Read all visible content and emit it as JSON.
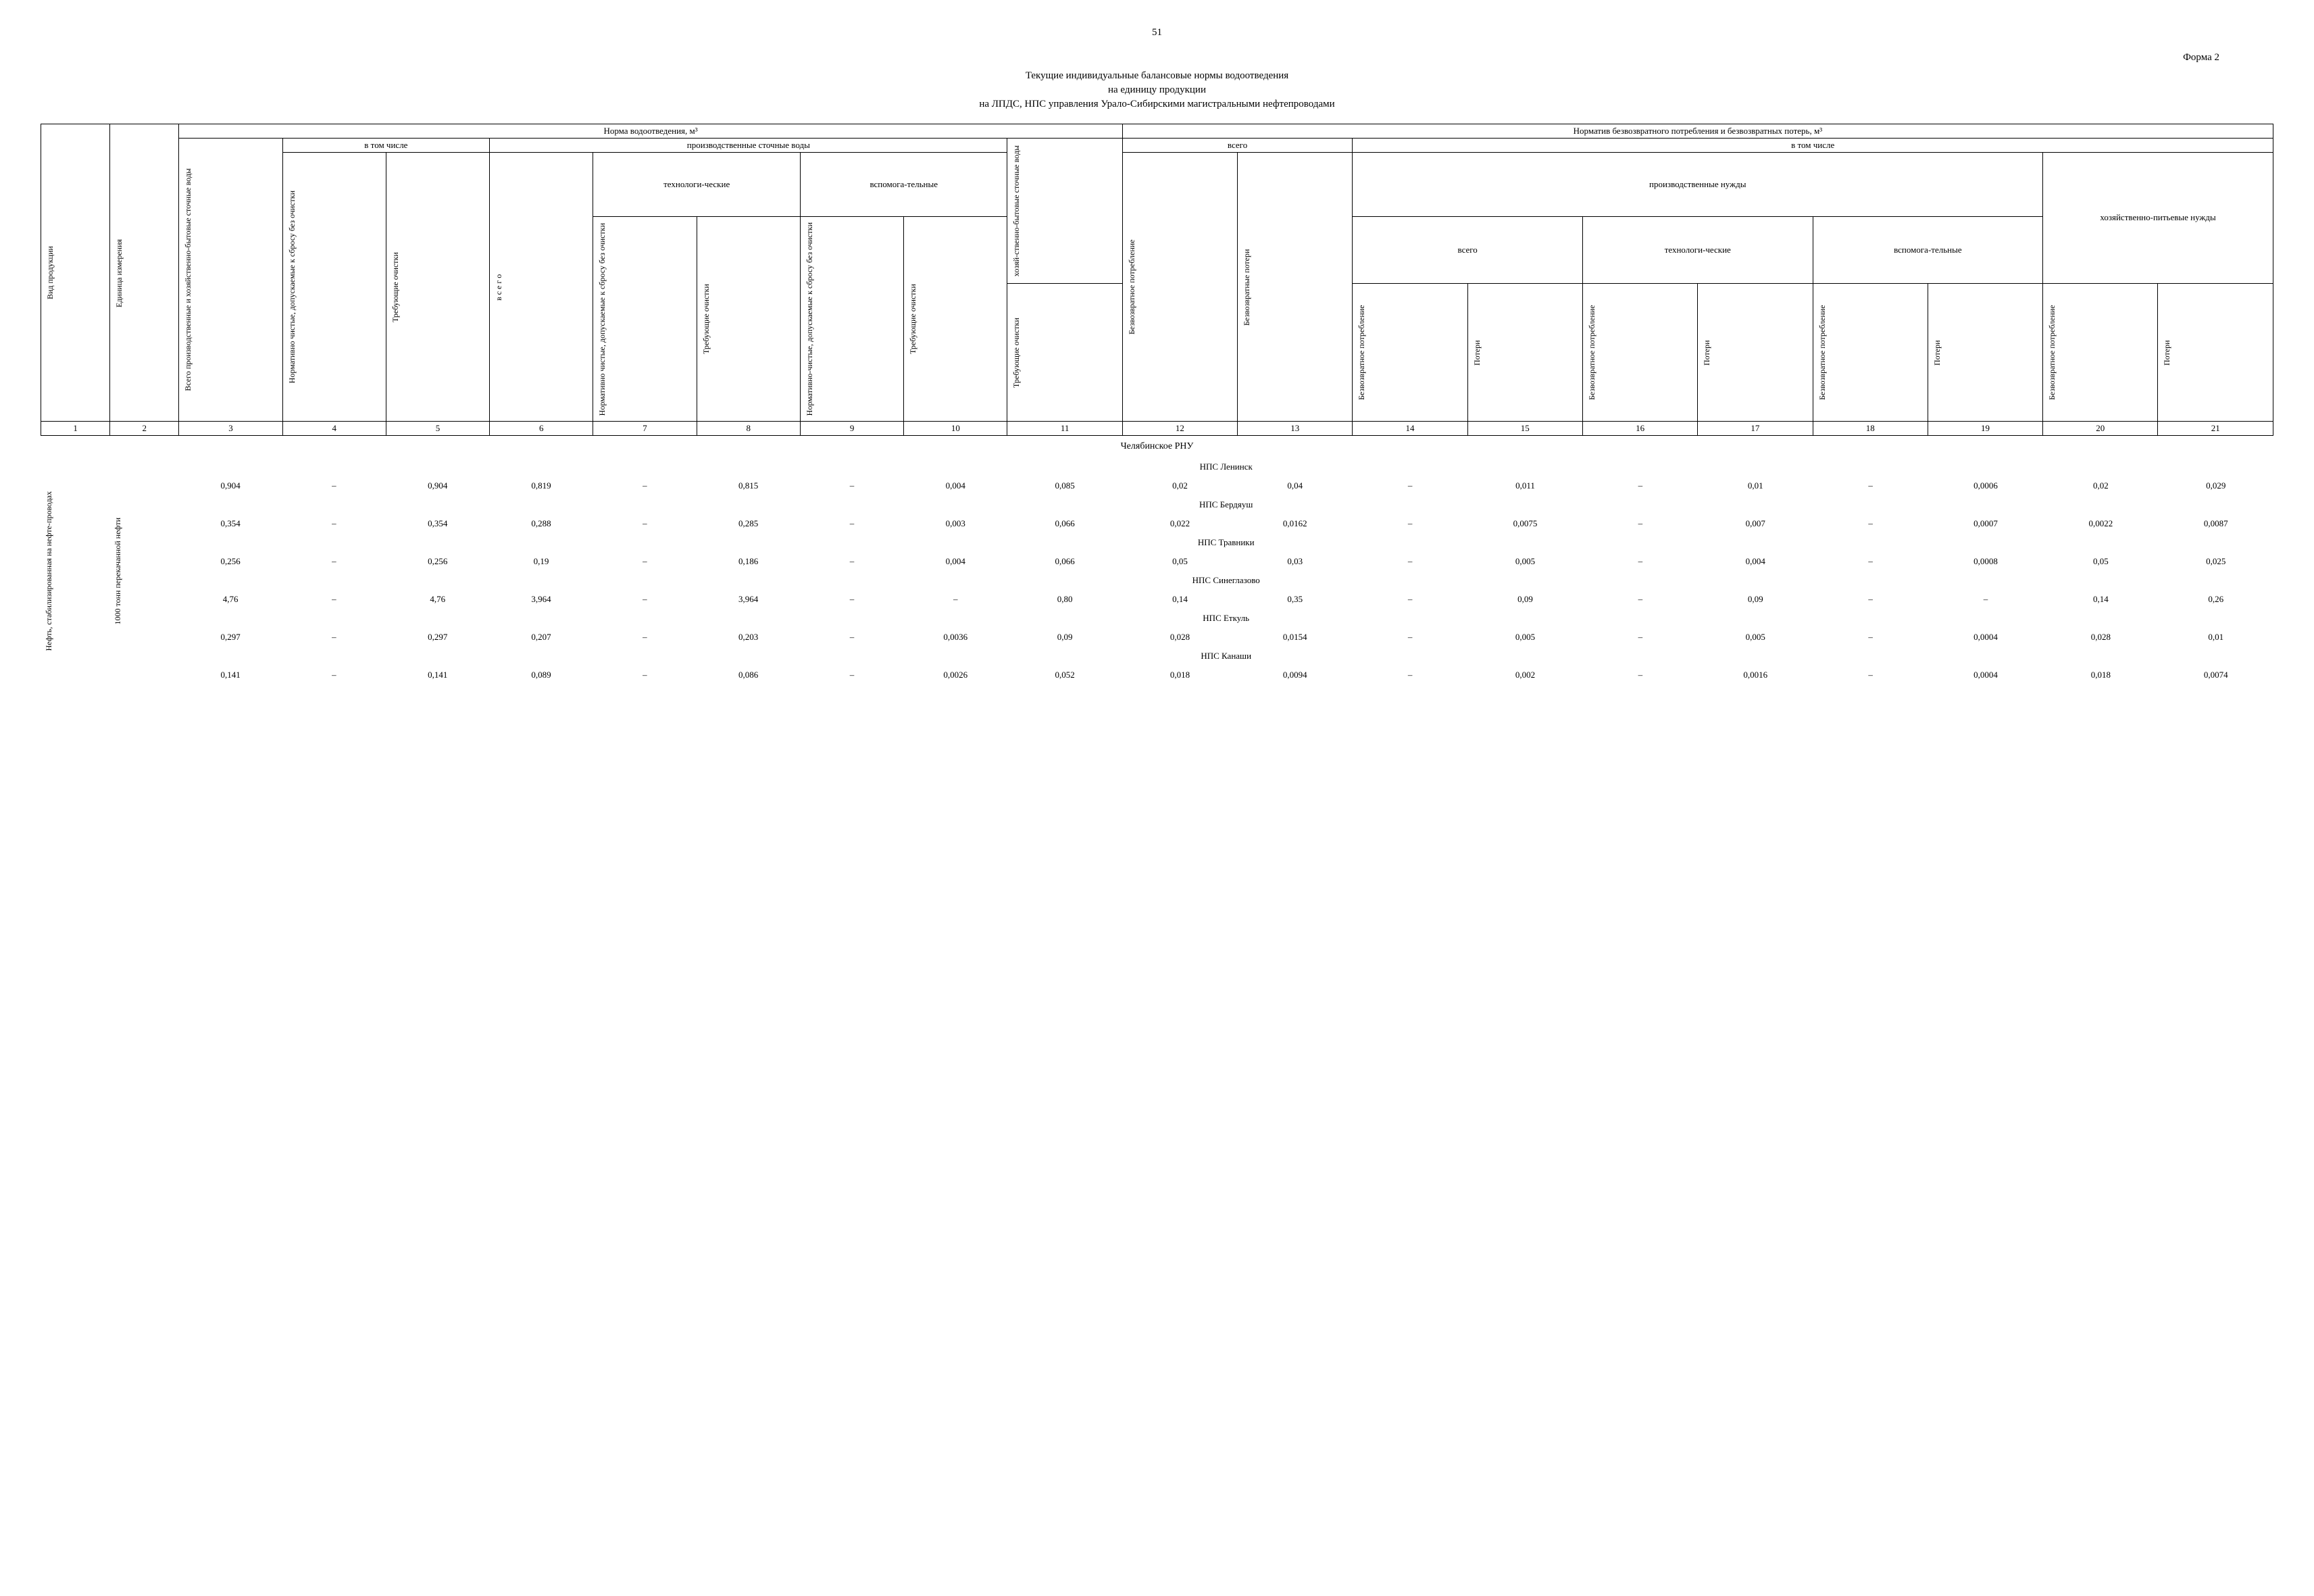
{
  "page_number": "51",
  "form_label": "Форма 2",
  "title1": "Текущие индивидуальные балансовые нормы водоотведения",
  "title2": "на единицу продукции",
  "subtitle": "на ЛПДС, НПС управления Урало-Сибирскими магистральными нефтепроводами",
  "header_main_left": "Норма водоотведения, ",
  "header_main_left_unit": "м³",
  "header_main_right": "Норматив безвозвратного потребления и безвозвратных потерь, м³",
  "header_vtomchisle": "в том числе",
  "header_proizv": "производственные сточные воды",
  "header_tech": "технологи-ческие",
  "header_vspom": "вспомога-тельные",
  "header_hoz": "хозяй-ственно-бытовые сточные воды",
  "header_vsego": "всего",
  "header_proizv_nuzhdy": "производственные нужды",
  "header_hoz_pit": "хозяйственно-питьевые нужды",
  "col1": "Вид продукции",
  "col2": "Единица измерения",
  "col3": "Всего производственные и хозяйственно-бытовые сточные воды",
  "col4": "Нормативно чистые, допускаемые к сбросу без очистки",
  "col5": "Требующие очистки",
  "col6": "в с е г о",
  "col7": "Нормативно чистые, допускаемые к сбросу без очистки",
  "col8": "Требующие очистки",
  "col9": "Нормативно-чистые, допускаемые к сбросу без очистки",
  "col10": "Требующие очистки",
  "col11": "Требующие очистки",
  "col12": "Безвозвратное потребление",
  "col13": "Безвозвратные потери",
  "col14": "Безвозвратное потребление",
  "col15": "Потери",
  "col16": "Безвозвратное потребление",
  "col17": "Потери",
  "col18": "Безвозвратное потребление",
  "col19": "Потери",
  "col20": "Безвозвратное потребление",
  "col21": "Потери",
  "colnums": [
    "1",
    "2",
    "3",
    "4",
    "5",
    "6",
    "7",
    "8",
    "9",
    "10",
    "11",
    "12",
    "13",
    "14",
    "15",
    "16",
    "17",
    "18",
    "19",
    "20",
    "21"
  ],
  "region_title": "Челябинское РНУ",
  "row_label_prod": "Нефть, стабилизированная на нефте-проводах",
  "row_label_unit": "1000 тонн перекачанной нефти",
  "stations": [
    {
      "name": "НПС Ленинск",
      "cells": [
        "0,904",
        "–",
        "0,904",
        "0,819",
        "–",
        "0,815",
        "–",
        "0,004",
        "0,085",
        "0,02",
        "0,04",
        "–",
        "0,011",
        "–",
        "0,01",
        "–",
        "0,0006",
        "0,02",
        "0,029"
      ]
    },
    {
      "name": "НПС Бердяуш",
      "cells": [
        "0,354",
        "–",
        "0,354",
        "0,288",
        "–",
        "0,285",
        "–",
        "0,003",
        "0,066",
        "0,022",
        "0,0162",
        "–",
        "0,0075",
        "–",
        "0,007",
        "–",
        "0,0007",
        "0,0022",
        "0,0087"
      ]
    },
    {
      "name": "НПС Травники",
      "cells": [
        "0,256",
        "–",
        "0,256",
        "0,19",
        "–",
        "0,186",
        "–",
        "0,004",
        "0,066",
        "0,05",
        "0,03",
        "–",
        "0,005",
        "–",
        "0,004",
        "–",
        "0,0008",
        "0,05",
        "0,025"
      ]
    },
    {
      "name": "НПС Синеглазово",
      "cells": [
        "4,76",
        "–",
        "4,76",
        "3,964",
        "–",
        "3,964",
        "–",
        "–",
        "0,80",
        "0,14",
        "0,35",
        "–",
        "0,09",
        "–",
        "0,09",
        "–",
        "–",
        "0,14",
        "0,26"
      ]
    },
    {
      "name": "НПС Еткуль",
      "cells": [
        "0,297",
        "–",
        "0,297",
        "0,207",
        "–",
        "0,203",
        "–",
        "0,0036",
        "0,09",
        "0,028",
        "0,0154",
        "–",
        "0,005",
        "–",
        "0,005",
        "–",
        "0,0004",
        "0,028",
        "0,01"
      ]
    },
    {
      "name": "НПС Канаши",
      "cells": [
        "0,141",
        "–",
        "0,141",
        "0,089",
        "–",
        "0,086",
        "–",
        "0,0026",
        "0,052",
        "0,018",
        "0,0094",
        "–",
        "0,002",
        "–",
        "0,0016",
        "–",
        "0,0004",
        "0,018",
        "0,0074"
      ]
    }
  ]
}
